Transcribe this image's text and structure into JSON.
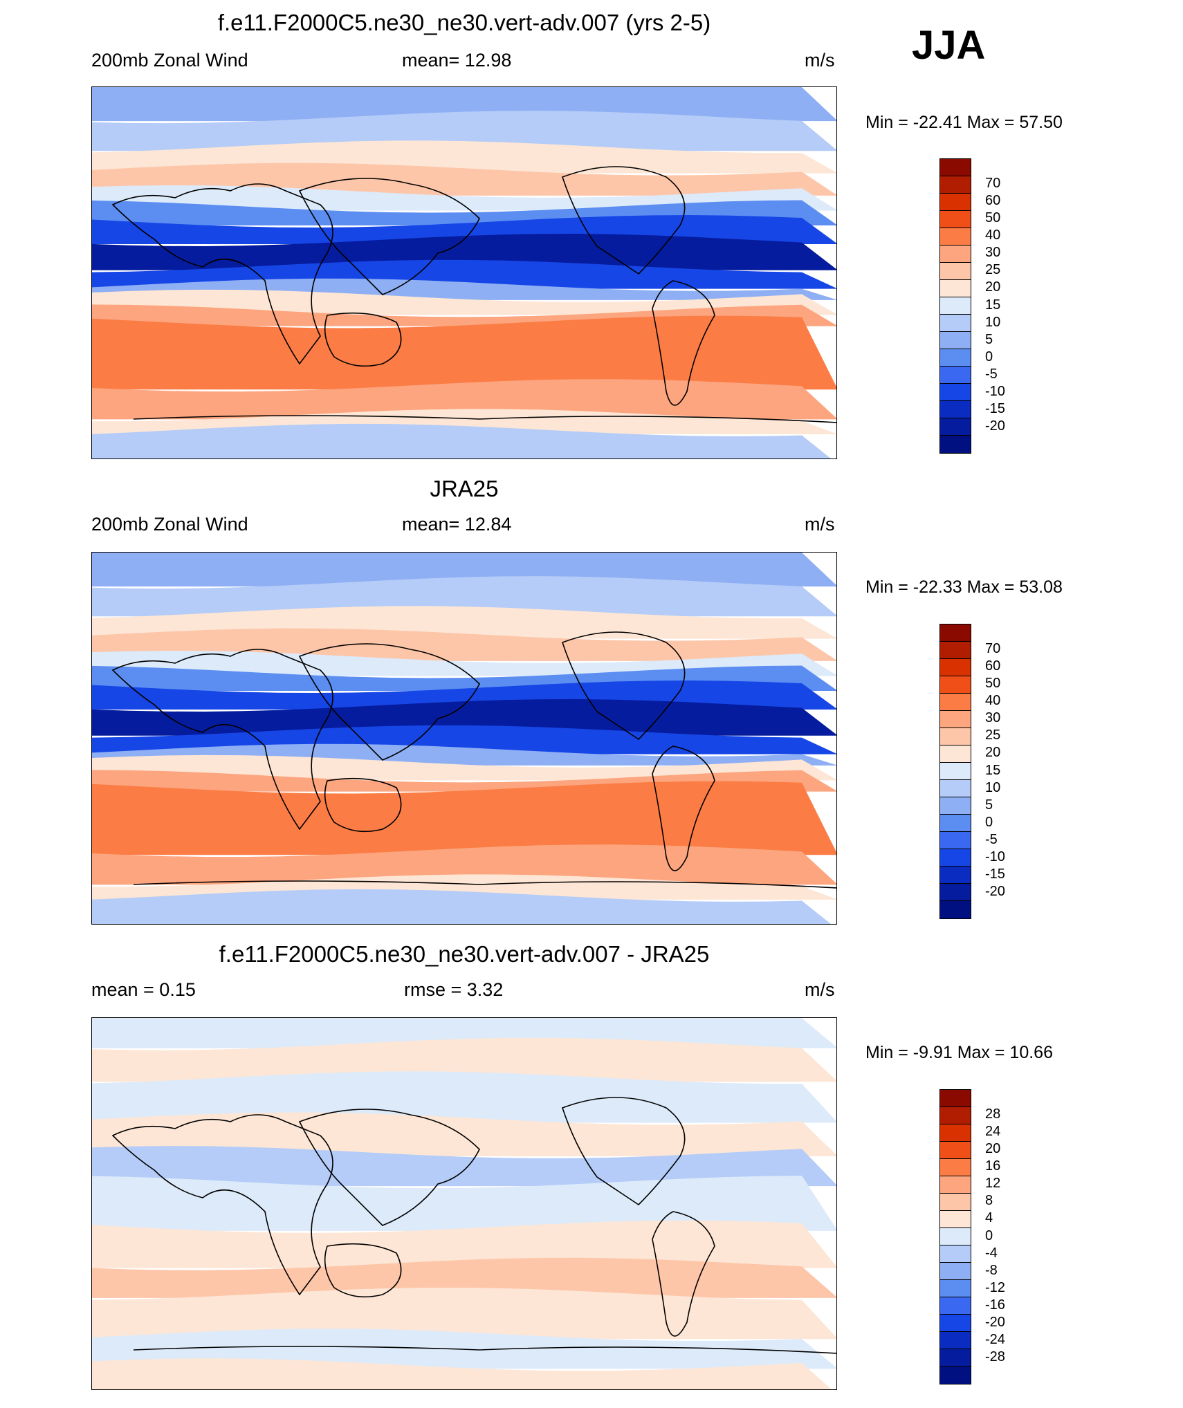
{
  "season": "JJA",
  "colors": {
    "main_scale": [
      "#8a0a00",
      "#b01d00",
      "#d93200",
      "#f05018",
      "#fb7d45",
      "#fca57f",
      "#fdc6a9",
      "#fde6d5",
      "#dceafa",
      "#b4ccf7",
      "#8eaff4",
      "#5c8ef2",
      "#3a68f0",
      "#1646e6",
      "#0a2cc0",
      "#061c9e",
      "#001080"
    ],
    "diff_scale": [
      "#8a0a00",
      "#b01d00",
      "#d93200",
      "#f05018",
      "#fb7d45",
      "#fca57f",
      "#fdc6a9",
      "#fde6d5",
      "#dceafa",
      "#b4ccf7",
      "#8eaff4",
      "#5c8ef2",
      "#3a68f0",
      "#1646e6",
      "#0a2cc0",
      "#061c9e",
      "#001080"
    ]
  },
  "panels": [
    {
      "title": "f.e11.F2000C5.ne30_ne30.vert-adv.007 (yrs 2-5)",
      "left_text": "200mb Zonal Wind",
      "center_text": "mean=  12.98",
      "units": "m/s",
      "minmax": "Min = -22.41 Max =  57.50",
      "colorbar_labels": [
        "70",
        "60",
        "50",
        "40",
        "30",
        "25",
        "20",
        "15",
        "10",
        "5",
        "0",
        "-5",
        "-10",
        "-15",
        "-20"
      ],
      "field": "model"
    },
    {
      "title": "JRA25",
      "left_text": "200mb Zonal Wind",
      "center_text": "mean=  12.84",
      "units": "m/s",
      "minmax": "Min = -22.33 Max =  53.08",
      "colorbar_labels": [
        "70",
        "60",
        "50",
        "40",
        "30",
        "25",
        "20",
        "15",
        "10",
        "5",
        "0",
        "-5",
        "-10",
        "-15",
        "-20"
      ],
      "field": "obs"
    },
    {
      "title": "f.e11.F2000C5.ne30_ne30.vert-adv.007 - JRA25",
      "left_text": "mean =   0.15",
      "center_text": "rmse =   3.32",
      "units": "m/s",
      "minmax": "Min =  -9.91 Max =  10.66",
      "colorbar_labels": [
        "28",
        "24",
        "20",
        "16",
        "12",
        "8",
        "4",
        "0",
        "-4",
        "-8",
        "-12",
        "-16",
        "-20",
        "-24",
        "-28"
      ],
      "field": "diff"
    }
  ]
}
